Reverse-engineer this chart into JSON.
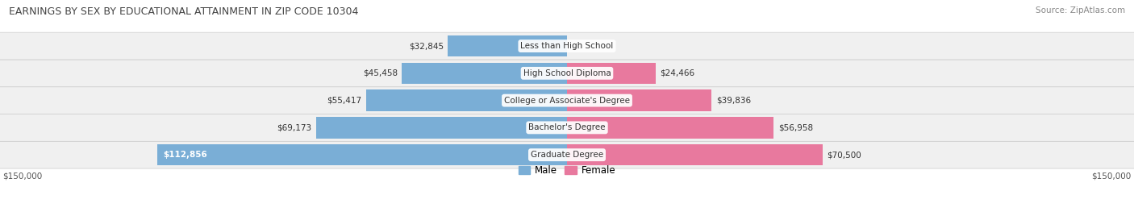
{
  "title": "EARNINGS BY SEX BY EDUCATIONAL ATTAINMENT IN ZIP CODE 10304",
  "source": "Source: ZipAtlas.com",
  "categories": [
    "Less than High School",
    "High School Diploma",
    "College or Associate's Degree",
    "Bachelor's Degree",
    "Graduate Degree"
  ],
  "male_values": [
    32845,
    45458,
    55417,
    69173,
    112856
  ],
  "female_values": [
    0,
    24466,
    39836,
    56958,
    70500
  ],
  "male_color": "#7aaed6",
  "female_color": "#e8799e",
  "max_val": 150000,
  "bg_color": "#ffffff",
  "row_bg_light": "#f0f0f0",
  "row_bg_dark": "#e4e4e4",
  "title_fontsize": 9.0,
  "source_fontsize": 7.5,
  "label_fontsize": 7.5,
  "bar_label_fontsize": 7.5,
  "legend_fontsize": 8.5
}
